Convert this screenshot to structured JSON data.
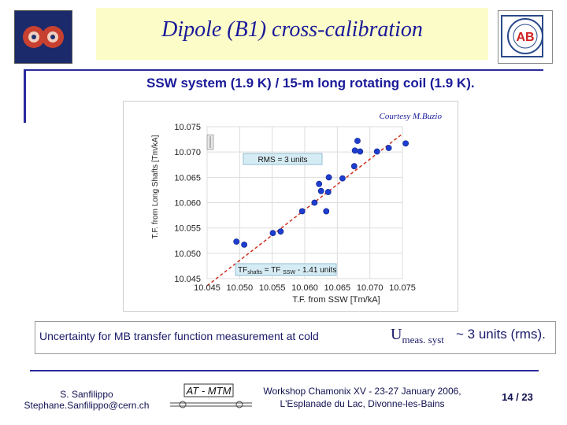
{
  "slide": {
    "title": "Dipole (B1) cross-calibration",
    "subtitle": "SSW system (1.9 K) / 15-m long rotating coil (1.9 K).",
    "logo_right_text": "AB",
    "uncertainty": {
      "text": "Uncertainty for MB transfer function measurement at cold",
      "symbol": "U",
      "subscript": "meas. syst",
      "value": "~ 3 units (rms)."
    }
  },
  "footer": {
    "author": "S. Sanfilippo",
    "email": "Stephane.Sanfilippo@cern.ch",
    "group_logo": "AT - MTM",
    "workshop_line1": "Workshop Chamonix XV - 23-27 January 2006,",
    "workshop_line2": "L'Esplanade du Lac, Divonne-les-Bains",
    "page": "14 / 23"
  },
  "chart_data": {
    "type": "scatter",
    "annotation_top": "Courtesy M.Buzio",
    "xlabel": "T.F. from SSW [Tm/kA]",
    "ylabel": "T.F. from Long Shafts [Tm/kA]",
    "xlim": [
      10.045,
      10.075
    ],
    "ylim": [
      10.045,
      10.075
    ],
    "x_ticks": [
      "10.045",
      "10.050",
      "10.055",
      "10.060",
      "10.065",
      "10.070",
      "10.075"
    ],
    "y_ticks": [
      "10.045",
      "10.050",
      "10.055",
      "10.060",
      "10.065",
      "10.070",
      "10.075"
    ],
    "grid": true,
    "points": [
      {
        "x": 10.0495,
        "y": 10.0523
      },
      {
        "x": 10.0507,
        "y": 10.0517
      },
      {
        "x": 10.0551,
        "y": 10.054
      },
      {
        "x": 10.0563,
        "y": 10.0543
      },
      {
        "x": 10.0596,
        "y": 10.0583
      },
      {
        "x": 10.0615,
        "y": 10.06
      },
      {
        "x": 10.0622,
        "y": 10.0637
      },
      {
        "x": 10.0625,
        "y": 10.0623
      },
      {
        "x": 10.0633,
        "y": 10.0583
      },
      {
        "x": 10.0636,
        "y": 10.0621
      },
      {
        "x": 10.0637,
        "y": 10.065
      },
      {
        "x": 10.0658,
        "y": 10.0648
      },
      {
        "x": 10.0676,
        "y": 10.0672
      },
      {
        "x": 10.0677,
        "y": 10.0703
      },
      {
        "x": 10.0681,
        "y": 10.0722
      },
      {
        "x": 10.0685,
        "y": 10.0701
      },
      {
        "x": 10.0711,
        "y": 10.0701
      },
      {
        "x": 10.0729,
        "y": 10.0708
      },
      {
        "x": 10.0755,
        "y": 10.0717
      }
    ],
    "fit_line": {
      "x": [
        10.045,
        10.075
      ],
      "y": [
        10.04359,
        10.07359
      ]
    },
    "annotations": {
      "rms_label": "RMS = 3 units",
      "fit_label_parts": [
        "TF",
        "shafts",
        " = TF ",
        "SSW",
        " - 1.41 units"
      ]
    }
  }
}
